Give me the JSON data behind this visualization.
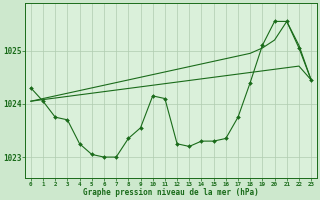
{
  "title": "Graphe pression niveau de la mer (hPa)",
  "background_color": "#cde8cd",
  "plot_bg_color": "#daf0da",
  "grid_color": "#b0ccb0",
  "line_color": "#1a6b1a",
  "xlim": [
    -0.5,
    23.5
  ],
  "ylim": [
    1022.6,
    1025.9
  ],
  "yticks": [
    1023,
    1024,
    1025
  ],
  "xticks": [
    0,
    1,
    2,
    3,
    4,
    5,
    6,
    7,
    8,
    9,
    10,
    11,
    12,
    13,
    14,
    15,
    16,
    17,
    18,
    19,
    20,
    21,
    22,
    23
  ],
  "series": {
    "main": [
      1024.3,
      1024.05,
      1023.75,
      1023.7,
      1023.25,
      1023.05,
      1023.0,
      1023.0,
      1023.35,
      1023.55,
      1024.15,
      1024.1,
      1023.25,
      1023.2,
      1023.3,
      1023.3,
      1023.35,
      1023.75,
      1024.4,
      1025.1,
      1025.55,
      1025.55,
      1025.05,
      1024.45
    ],
    "trend1": [
      1024.05,
      1024.08,
      1024.11,
      1024.14,
      1024.17,
      1024.2,
      1024.23,
      1024.26,
      1024.29,
      1024.32,
      1024.35,
      1024.38,
      1024.41,
      1024.44,
      1024.47,
      1024.5,
      1024.53,
      1024.56,
      1024.59,
      1024.62,
      1024.65,
      1024.68,
      1024.71,
      1024.45
    ],
    "trend2": [
      1024.05,
      1024.1,
      1024.15,
      1024.2,
      1024.25,
      1024.3,
      1024.35,
      1024.4,
      1024.45,
      1024.5,
      1024.55,
      1024.6,
      1024.65,
      1024.7,
      1024.75,
      1024.8,
      1024.85,
      1024.9,
      1024.95,
      1025.05,
      1025.2,
      1025.55,
      1025.1,
      1024.45
    ]
  }
}
